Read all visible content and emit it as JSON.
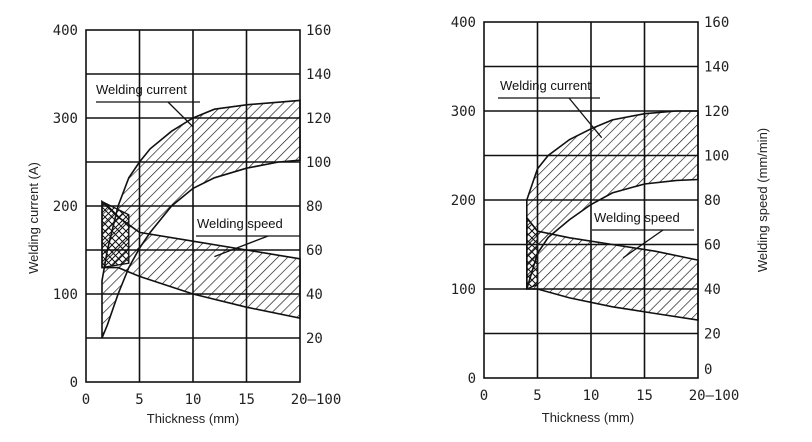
{
  "chart_data": [
    {
      "type": "area",
      "panel": "left",
      "xlabel": "Thickness (mm)",
      "ylabel": "Welding current (A)",
      "y2label": "",
      "x_ticks": [
        "0",
        "5",
        "10",
        "15",
        "20"
      ],
      "x_end_label": "20–100",
      "xlim": [
        0,
        20
      ],
      "y_ticks": [
        "0",
        "100",
        "200",
        "300",
        "400"
      ],
      "ylim": [
        0,
        400
      ],
      "y2_ticks": [
        "20",
        "40",
        "60",
        "80",
        "100",
        "120",
        "140",
        "160"
      ],
      "y2lim": [
        0,
        160
      ],
      "grid": true,
      "series": [
        {
          "name": "Welding current",
          "axis": "left",
          "x": [
            1.5,
            2,
            3,
            4,
            5,
            6,
            8,
            10,
            12,
            15,
            18,
            20
          ],
          "upper": [
            115,
            150,
            200,
            232,
            250,
            265,
            285,
            300,
            310,
            315,
            318,
            320
          ],
          "lower": [
            50,
            65,
            100,
            130,
            152,
            170,
            200,
            220,
            232,
            243,
            250,
            252
          ],
          "annotation": "Welding current",
          "annotation_anchor": [
            10,
            290
          ]
        },
        {
          "name": "Welding speed",
          "axis": "right",
          "x": [
            1.5,
            3,
            5,
            10,
            15,
            20
          ],
          "upper": [
            82,
            75,
            68,
            64,
            60,
            56
          ],
          "lower": [
            52,
            52,
            48,
            40,
            34,
            29
          ],
          "annotation": "Welding speed",
          "annotation_anchor": [
            12,
            57
          ]
        }
      ]
    },
    {
      "type": "area",
      "panel": "right",
      "xlabel": "Thickness (mm)",
      "ylabel": "",
      "y2label": "Welding speed (mm/min)",
      "x_ticks": [
        "0",
        "5",
        "10",
        "15",
        "20"
      ],
      "x_end_label": "20–100",
      "xlim": [
        0,
        20
      ],
      "y_ticks": [
        "0",
        "100",
        "200",
        "300",
        "400"
      ],
      "ylim": [
        0,
        400
      ],
      "y2_ticks": [
        "0",
        "20",
        "40",
        "60",
        "80",
        "100",
        "120",
        "140",
        "160"
      ],
      "y2lim": [
        0,
        160
      ],
      "grid": true,
      "series": [
        {
          "name": "Welding current",
          "axis": "left",
          "x": [
            4,
            5,
            6,
            8,
            10,
            12,
            15,
            18,
            20
          ],
          "upper": [
            200,
            235,
            250,
            268,
            280,
            290,
            297,
            300,
            300
          ],
          "lower": [
            100,
            140,
            158,
            178,
            195,
            208,
            218,
            222,
            223
          ],
          "annotation": "Welding current",
          "annotation_anchor": [
            11,
            270
          ]
        },
        {
          "name": "Welding speed",
          "axis": "right",
          "x": [
            4,
            5,
            8,
            12,
            16,
            20
          ],
          "upper": [
            72,
            66,
            63,
            60,
            57,
            53
          ],
          "lower": [
            40,
            40,
            36,
            32,
            29,
            26
          ],
          "annotation": "Welding speed",
          "annotation_anchor": [
            13,
            54
          ]
        }
      ]
    }
  ]
}
